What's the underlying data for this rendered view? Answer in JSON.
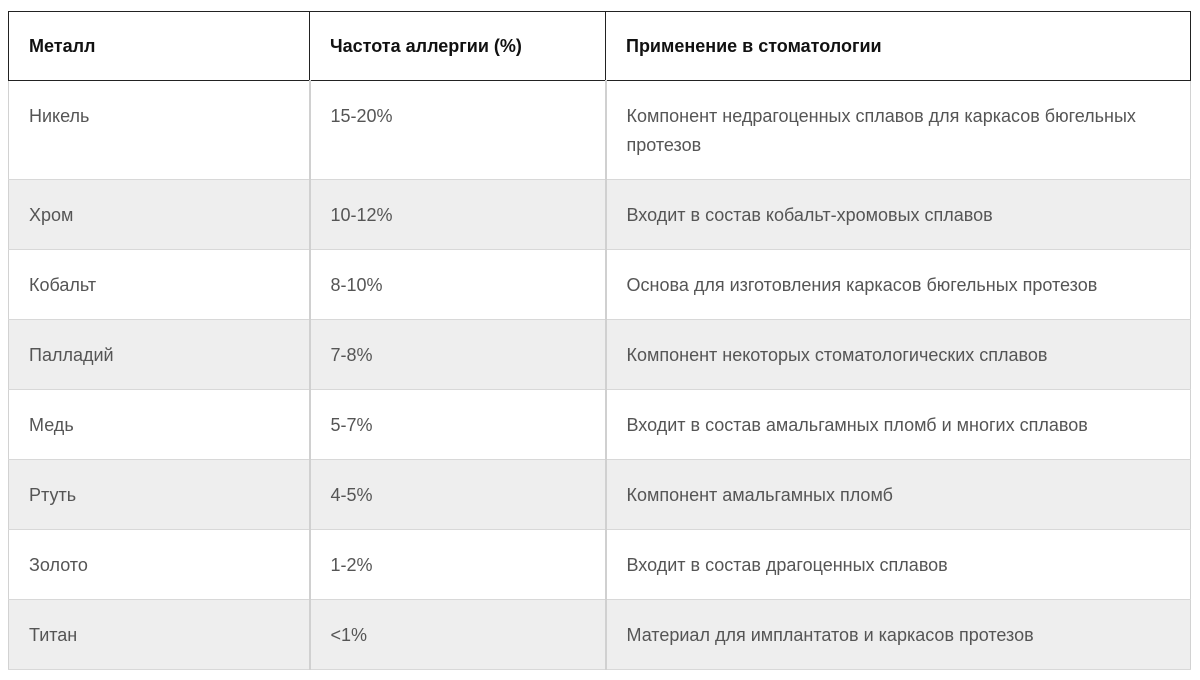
{
  "table": {
    "headers": [
      "Металл",
      "Частота аллергии (%)",
      "Применение в стоматологии"
    ],
    "rows": [
      [
        "Никель",
        "15-20%",
        "Компонент недрагоценных сплавов для каркасов бюгельных протезов"
      ],
      [
        "Хром",
        "10-12%",
        "Входит в состав кобальт-хромовых сплавов"
      ],
      [
        "Кобальт",
        "8-10%",
        "Основа для изготовления каркасов бюгельных протезов"
      ],
      [
        "Палладий",
        "7-8%",
        "Компонент некоторых стоматологических сплавов"
      ],
      [
        "Медь",
        "5-7%",
        "Входит в состав амальгамных пломб и многих сплавов"
      ],
      [
        "Ртуть",
        "4-5%",
        "Компонент амальгамных пломб"
      ],
      [
        "Золото",
        "1-2%",
        "Входит в состав драгоценных сплавов"
      ],
      [
        "Титан",
        "<1%",
        "Материал для имплантатов и каркасов протезов"
      ]
    ]
  },
  "colors": {
    "header_border": "#222222",
    "row_shade": "#eeeeee",
    "text": "#555555"
  }
}
